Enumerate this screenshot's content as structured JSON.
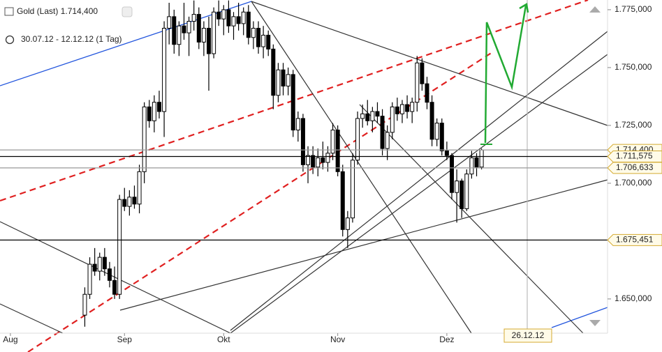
{
  "chart_data": {
    "type": "candlestick",
    "title": "Gold (Last) 1.714,400",
    "subtitle": "30.07.12 - 12.12.12 (1 Tag)",
    "cursor_label": "26.12.12",
    "up_color": "#ffffff",
    "down_color": "#000000",
    "xlim": [
      -2.1,
      120.4
    ],
    "xticks": [
      {
        "value": 0,
        "label": "Aug"
      },
      {
        "value": 23,
        "label": "Sep"
      },
      {
        "value": 43,
        "label": "Okt"
      },
      {
        "value": 66,
        "label": "Nov"
      },
      {
        "value": 88,
        "label": "Dez"
      }
    ],
    "ylim": [
      1635.2,
      1779.2
    ],
    "yticks": [
      {
        "value": 1650,
        "label": "1.650,000"
      },
      {
        "value": 1700,
        "label": "1.700,000"
      },
      {
        "value": 1725,
        "label": "1.725,000"
      },
      {
        "value": 1750,
        "label": "1.750,000"
      },
      {
        "value": 1775,
        "label": "1.775,000"
      }
    ],
    "levels": [
      {
        "value": 1714.4,
        "label": "1.714,400",
        "color": "#999999"
      },
      {
        "value": 1711.575,
        "label": "1.711,575",
        "color": "#000000"
      },
      {
        "value": 1706.633,
        "label": "1.706,633",
        "color": "#999999"
      },
      {
        "value": 1675.451,
        "label": "1.675,451",
        "color": "#000000"
      }
    ],
    "x": [
      15,
      16,
      17,
      18,
      19,
      20,
      21,
      22,
      23,
      24,
      25,
      26,
      27,
      28,
      29,
      30,
      31,
      32,
      33,
      34,
      35,
      36,
      37,
      38,
      39,
      40,
      41,
      42,
      43,
      44,
      45,
      46,
      47,
      48,
      49,
      50,
      51,
      52,
      53,
      54,
      55,
      56,
      57,
      58,
      59,
      60,
      61,
      62,
      63,
      64,
      65,
      66,
      67,
      68,
      69,
      70,
      71,
      72,
      73,
      74,
      75,
      76,
      77,
      78,
      79,
      80,
      81,
      82,
      83,
      84,
      85,
      86,
      87,
      88,
      89,
      90,
      91,
      92,
      93,
      94,
      95
    ],
    "open": [
      1643,
      1652,
      1665,
      1662,
      1668,
      1663,
      1658,
      1652,
      1693,
      1690,
      1694,
      1691,
      1705,
      1733,
      1727,
      1735,
      1731,
      1767,
      1772,
      1760,
      1768,
      1765,
      1770,
      1773,
      1761,
      1767,
      1756,
      1774,
      1771,
      1775,
      1768,
      1772,
      1769,
      1774,
      1763,
      1767,
      1759,
      1764,
      1758,
      1738,
      1749,
      1742,
      1747,
      1723,
      1728,
      1708,
      1712,
      1707,
      1711,
      1709,
      1713,
      1723,
      1705,
      1680,
      1685,
      1710,
      1728,
      1730,
      1727,
      1731,
      1729,
      1715,
      1722,
      1733,
      1730,
      1734,
      1731,
      1735,
      1752,
      1743,
      1735,
      1719,
      1726,
      1714,
      1712,
      1696,
      1701,
      1689,
      1704,
      1711,
      1707
    ],
    "high": [
      1655,
      1668,
      1672,
      1670,
      1672,
      1666,
      1664,
      1695,
      1698,
      1697,
      1699,
      1708,
      1735,
      1736,
      1738,
      1740,
      1770,
      1778,
      1775,
      1770,
      1778,
      1772,
      1779,
      1776,
      1770,
      1772,
      1776,
      1779,
      1777,
      1779,
      1774,
      1778,
      1776,
      1777,
      1770,
      1770,
      1768,
      1766,
      1760,
      1752,
      1752,
      1750,
      1749,
      1731,
      1730,
      1716,
      1716,
      1715,
      1718,
      1716,
      1726,
      1725,
      1708,
      1688,
      1713,
      1731,
      1734,
      1736,
      1733,
      1735,
      1732,
      1725,
      1735,
      1737,
      1736,
      1738,
      1737,
      1755,
      1754,
      1746,
      1738,
      1728,
      1728,
      1718,
      1713,
      1706,
      1702,
      1706,
      1714,
      1713,
      1715
    ],
    "low": [
      1638,
      1650,
      1660,
      1658,
      1660,
      1655,
      1650,
      1650,
      1688,
      1686,
      1689,
      1687,
      1700,
      1724,
      1722,
      1728,
      1720,
      1760,
      1756,
      1755,
      1762,
      1755,
      1766,
      1758,
      1755,
      1740,
      1754,
      1768,
      1764,
      1765,
      1762,
      1766,
      1764,
      1760,
      1758,
      1756,
      1754,
      1755,
      1732,
      1735,
      1738,
      1738,
      1720,
      1718,
      1705,
      1700,
      1704,
      1703,
      1706,
      1705,
      1710,
      1703,
      1677,
      1672,
      1683,
      1708,
      1724,
      1725,
      1722,
      1726,
      1712,
      1710,
      1719,
      1727,
      1726,
      1728,
      1726,
      1731,
      1740,
      1732,
      1716,
      1716,
      1712,
      1710,
      1693,
      1683,
      1685,
      1688,
      1702,
      1703,
      1706
    ],
    "close": [
      1652,
      1665,
      1662,
      1668,
      1663,
      1658,
      1652,
      1693,
      1690,
      1694,
      1691,
      1705,
      1733,
      1727,
      1735,
      1731,
      1767,
      1772,
      1760,
      1768,
      1765,
      1770,
      1773,
      1761,
      1767,
      1756,
      1774,
      1771,
      1775,
      1768,
      1772,
      1769,
      1774,
      1763,
      1767,
      1759,
      1764,
      1758,
      1738,
      1749,
      1742,
      1747,
      1723,
      1728,
      1708,
      1712,
      1707,
      1711,
      1709,
      1713,
      1723,
      1705,
      1680,
      1685,
      1710,
      1728,
      1730,
      1727,
      1731,
      1729,
      1715,
      1722,
      1733,
      1730,
      1734,
      1731,
      1735,
      1752,
      1743,
      1735,
      1719,
      1726,
      1714,
      1712,
      1696,
      1701,
      1689,
      1704,
      1711,
      1707,
      1714.4
    ]
  }
}
